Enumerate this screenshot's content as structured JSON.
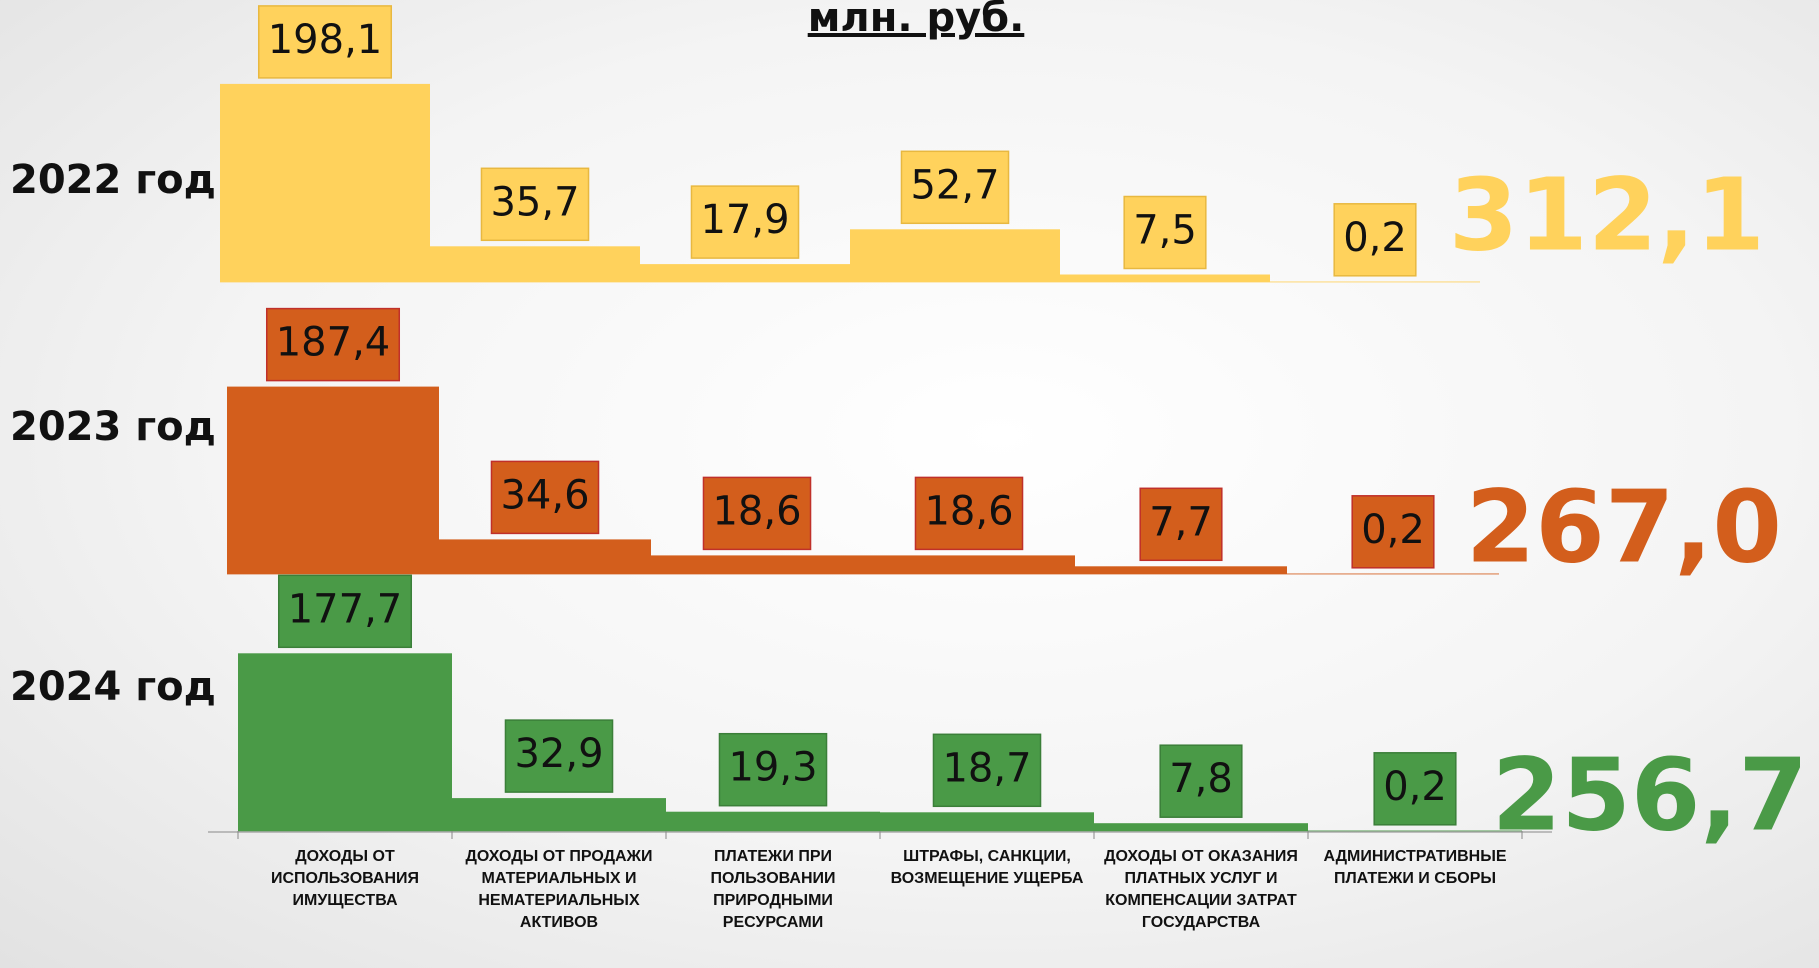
{
  "chart_data": {
    "type": "bar",
    "title": "млн. руб.",
    "categories": [
      "ДОХОДЫ ОТ ИСПОЛЬЗОВАНИЯ ИМУЩЕСТВА",
      "ДОХОДЫ ОТ ПРОДАЖИ МАТЕРИАЛЬНЫХ И НЕМАТЕРИАЛЬНЫХ АКТИВОВ",
      "ПЛАТЕЖИ ПРИ ПОЛЬЗОВАНИИ ПРИРОДНЫМИ РЕСУРСАМИ",
      "ШТРАФЫ, САНКЦИИ, ВОЗМЕЩЕНИЕ УЩЕРБА",
      "ДОХОДЫ ОТ ОКАЗАНИЯ ПЛАТНЫХ УСЛУГ И КОМПЕНСАЦИИ ЗАТРАТ ГОСУДАРСТВА",
      "АДМИНИСТРАТИВНЫЕ ПЛАТЕЖИ И СБОРЫ"
    ],
    "series": [
      {
        "name": "2022 год",
        "color": "#ffd25c",
        "values": [
          198.1,
          35.7,
          17.9,
          52.7,
          7.5,
          0.2
        ],
        "value_labels": [
          "198,1",
          "35,7",
          "17,9",
          "52,7",
          "7,5",
          "0,2"
        ],
        "total": "312,1"
      },
      {
        "name": "2023 год",
        "color": "#d35e1c",
        "values": [
          187.4,
          34.6,
          18.6,
          18.6,
          7.7,
          0.2
        ],
        "value_labels": [
          "187,4",
          "34,6",
          "18,6",
          "18,6",
          "7,7",
          "0,2"
        ],
        "total": "267,0"
      },
      {
        "name": "2024 год",
        "color": "#4a9a47",
        "values": [
          177.7,
          32.9,
          19.3,
          18.7,
          7.8,
          0.2
        ],
        "value_labels": [
          "177,7",
          "32,9",
          "19,3",
          "18,7",
          "7,8",
          "0,2"
        ],
        "total": "256,7"
      }
    ]
  }
}
